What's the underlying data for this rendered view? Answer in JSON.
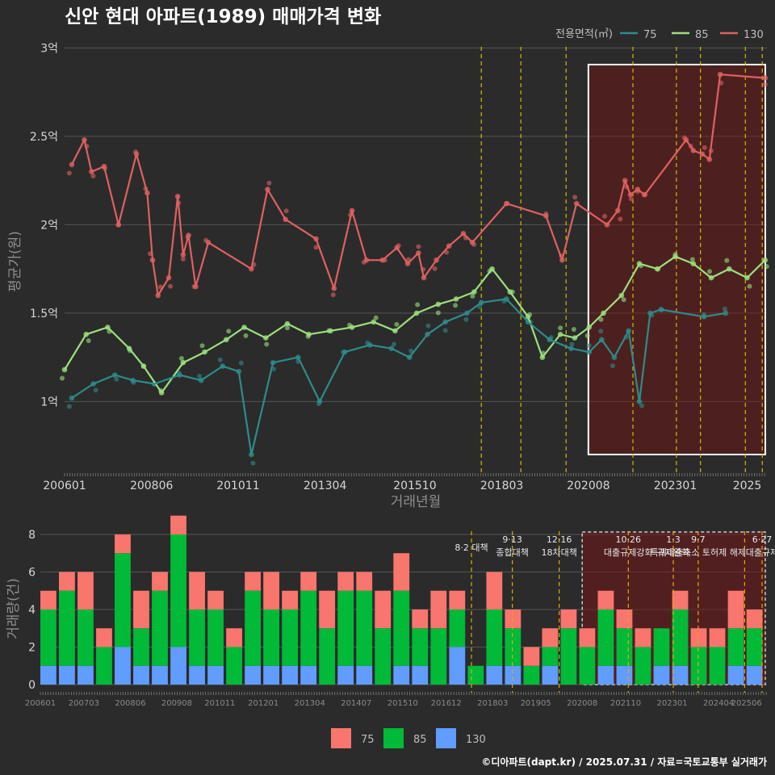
{
  "title": "신안 현대 아파트(1989) 매매가격 변화",
  "credit": "©디아파트(dapt.kr) / 2025.07.31 / 자료=국토교통부 실거래가",
  "colors": {
    "bg": "#2b2b2b",
    "s75": "#2e8b8b",
    "s85": "#9be07e",
    "s130": "#e06060",
    "b75": "#f8766d",
    "b85": "#00ba38",
    "b130": "#619cff",
    "policy": "#d4b800",
    "highlight": "#ffffff"
  },
  "chart_data": [
    {
      "type": "line",
      "title": "신안 현대 아파트(1989) 매매가격 변화",
      "xlabel": "거래년월",
      "ylabel": "평균가(원)",
      "x_range": [
        2006.0,
        2025.55
      ],
      "ylim": [
        0.6,
        3.02
      ],
      "y_ticks": [
        {
          "v": 1.0,
          "label": "1억"
        },
        {
          "v": 1.5,
          "label": "1.5억"
        },
        {
          "v": 2.0,
          "label": "2억"
        },
        {
          "v": 2.5,
          "label": "2.5억"
        },
        {
          "v": 3.0,
          "label": "3억"
        }
      ],
      "x_ticks": [
        {
          "v": 2006.0,
          "label": "200601"
        },
        {
          "v": 2008.42,
          "label": "200806"
        },
        {
          "v": 2010.83,
          "label": "201011"
        },
        {
          "v": 2013.25,
          "label": "201304"
        },
        {
          "v": 2015.75,
          "label": "201510"
        },
        {
          "v": 2018.17,
          "label": "201803"
        },
        {
          "v": 2020.58,
          "label": "202008"
        },
        {
          "v": 2023.0,
          "label": "202301"
        },
        {
          "v": 2025.0,
          "label": "2025"
        }
      ],
      "legend": {
        "title": "전용면적(㎡)",
        "entries": [
          "75",
          "85",
          "130"
        ],
        "position": "top-right"
      },
      "series": [
        {
          "name": "130",
          "x": [
            2006.2,
            2006.55,
            2006.75,
            2007.1,
            2007.5,
            2008.0,
            2008.3,
            2008.45,
            2008.6,
            2008.9,
            2009.15,
            2009.3,
            2009.45,
            2009.65,
            2010.0,
            2011.2,
            2011.65,
            2012.15,
            2013.0,
            2013.5,
            2014.0,
            2014.4,
            2014.85,
            2015.25,
            2015.55,
            2015.85,
            2016.0,
            2016.35,
            2016.7,
            2017.1,
            2017.35,
            2018.3,
            2019.4,
            2019.85,
            2020.25,
            2021.1,
            2021.4,
            2021.6,
            2021.75,
            2021.95,
            2022.15,
            2023.3,
            2023.5,
            2023.75,
            2023.95,
            2024.25,
            2025.5
          ],
          "y": [
            2.34,
            2.48,
            2.3,
            2.33,
            2.0,
            2.4,
            2.18,
            1.8,
            1.6,
            1.7,
            2.16,
            1.83,
            1.94,
            1.65,
            1.9,
            1.75,
            2.2,
            2.03,
            1.92,
            1.64,
            2.08,
            1.8,
            1.8,
            1.87,
            1.78,
            1.84,
            1.7,
            1.8,
            1.88,
            1.95,
            1.9,
            2.12,
            2.05,
            1.8,
            2.12,
            2.0,
            2.08,
            2.25,
            2.17,
            2.2,
            2.17,
            2.48,
            2.42,
            2.4,
            2.37,
            2.85,
            2.83
          ]
        },
        {
          "name": "85",
          "x": [
            2006.0,
            2006.6,
            2007.2,
            2007.8,
            2008.2,
            2008.7,
            2009.3,
            2009.9,
            2010.5,
            2011.0,
            2011.6,
            2012.2,
            2012.8,
            2013.4,
            2014.0,
            2014.6,
            2015.2,
            2015.8,
            2016.4,
            2016.9,
            2017.4,
            2017.9,
            2018.4,
            2018.9,
            2019.3,
            2019.8,
            2020.2,
            2020.6,
            2021.0,
            2021.5,
            2022.0,
            2022.5,
            2023.0,
            2023.5,
            2024.0,
            2024.5,
            2025.0,
            2025.5
          ],
          "y": [
            1.18,
            1.38,
            1.42,
            1.3,
            1.2,
            1.05,
            1.22,
            1.28,
            1.35,
            1.42,
            1.36,
            1.44,
            1.38,
            1.4,
            1.42,
            1.45,
            1.4,
            1.5,
            1.55,
            1.58,
            1.62,
            1.75,
            1.62,
            1.48,
            1.25,
            1.38,
            1.36,
            1.42,
            1.5,
            1.6,
            1.78,
            1.75,
            1.82,
            1.78,
            1.7,
            1.75,
            1.7,
            1.8
          ]
        },
        {
          "name": "75",
          "x": [
            2006.2,
            2006.8,
            2007.4,
            2007.9,
            2008.5,
            2009.2,
            2009.8,
            2010.4,
            2010.85,
            2011.2,
            2011.8,
            2012.5,
            2013.1,
            2013.8,
            2014.5,
            2015.1,
            2015.6,
            2016.1,
            2016.6,
            2017.2,
            2017.6,
            2018.3,
            2018.9,
            2019.5,
            2020.1,
            2020.6,
            2020.95,
            2021.3,
            2021.7,
            2022.0,
            2022.3,
            2022.6,
            2023.8,
            2024.4
          ],
          "y": [
            1.02,
            1.1,
            1.15,
            1.12,
            1.1,
            1.15,
            1.12,
            1.2,
            1.17,
            0.7,
            1.22,
            1.25,
            1.0,
            1.28,
            1.32,
            1.3,
            1.25,
            1.38,
            1.45,
            1.5,
            1.56,
            1.58,
            1.45,
            1.35,
            1.3,
            1.28,
            1.35,
            1.25,
            1.4,
            1.0,
            1.5,
            1.52,
            1.48,
            1.5
          ]
        }
      ],
      "policy_lines": [
        2017.6,
        2018.7,
        2019.96,
        2021.82,
        2023.03,
        2023.7,
        2024.95,
        2025.42
      ],
      "highlight": [
        2020.58,
        2025.55
      ]
    },
    {
      "type": "bar",
      "ylabel": "거래량(건)",
      "x_range": [
        2006.0,
        2025.55
      ],
      "ylim": [
        0,
        8.3
      ],
      "y_ticks": [
        0,
        2,
        4,
        6,
        8
      ],
      "x_ticks": [
        {
          "v": 2006.0,
          "label": "200601"
        },
        {
          "v": 2007.17,
          "label": "200703"
        },
        {
          "v": 2008.42,
          "label": "200806"
        },
        {
          "v": 2009.67,
          "label": "200908"
        },
        {
          "v": 2010.83,
          "label": "201011"
        },
        {
          "v": 2012.0,
          "label": "201201"
        },
        {
          "v": 2013.25,
          "label": "201304"
        },
        {
          "v": 2014.5,
          "label": "201407"
        },
        {
          "v": 2015.75,
          "label": "201510"
        },
        {
          "v": 2016.92,
          "label": "201612"
        },
        {
          "v": 2018.17,
          "label": "201803"
        },
        {
          "v": 2019.33,
          "label": "201905"
        },
        {
          "v": 2020.58,
          "label": "202008"
        },
        {
          "v": 2021.75,
          "label": "202110"
        },
        {
          "v": 2023.0,
          "label": "202301"
        },
        {
          "v": 2024.25,
          "label": "202404"
        },
        {
          "v": 2025.0,
          "label": "202506"
        }
      ],
      "legend": {
        "entries": [
          "75",
          "85",
          "130"
        ],
        "position": "bottom"
      },
      "series": [
        {
          "name": "130",
          "x": [
            2006.0,
            2006.5,
            2007.0,
            2007.5,
            2008.0,
            2008.5,
            2009.0,
            2009.5,
            2010.0,
            2010.5,
            2011.0,
            2011.5,
            2012.0,
            2012.5,
            2013.0,
            2013.5,
            2014.0,
            2014.5,
            2015.0,
            2015.5,
            2016.0,
            2016.5,
            2017.0,
            2017.5,
            2018.0,
            2018.5,
            2019.0,
            2019.5,
            2020.0,
            2020.5,
            2021.0,
            2021.5,
            2022.0,
            2022.5,
            2023.0,
            2023.5,
            2024.0,
            2024.5,
            2025.0
          ],
          "values": [
            1,
            1,
            1,
            0,
            2,
            1,
            1,
            2,
            1,
            1,
            0,
            1,
            1,
            1,
            1,
            0,
            1,
            1,
            0,
            1,
            1,
            0,
            2,
            0,
            1,
            1,
            0,
            1,
            0,
            0,
            1,
            1,
            0,
            1,
            1,
            0,
            0,
            1,
            1
          ]
        },
        {
          "name": "85",
          "x": [
            2006.0,
            2006.5,
            2007.0,
            2007.5,
            2008.0,
            2008.5,
            2009.0,
            2009.5,
            2010.0,
            2010.5,
            2011.0,
            2011.5,
            2012.0,
            2012.5,
            2013.0,
            2013.5,
            2014.0,
            2014.5,
            2015.0,
            2015.5,
            2016.0,
            2016.5,
            2017.0,
            2017.5,
            2018.0,
            2018.5,
            2019.0,
            2019.5,
            2020.0,
            2020.5,
            2021.0,
            2021.5,
            2022.0,
            2022.5,
            2023.0,
            2023.5,
            2024.0,
            2024.5,
            2025.0
          ],
          "values": [
            3,
            4,
            3,
            2,
            5,
            2,
            4,
            6,
            3,
            3,
            2,
            4,
            3,
            3,
            4,
            3,
            4,
            4,
            3,
            4,
            2,
            3,
            2,
            1,
            3,
            2,
            1,
            1,
            3,
            2,
            3,
            2,
            2,
            2,
            3,
            2,
            2,
            2,
            2
          ]
        },
        {
          "name": "75",
          "x": [
            2006.0,
            2006.5,
            2007.0,
            2007.5,
            2008.0,
            2008.5,
            2009.0,
            2009.5,
            2010.0,
            2010.5,
            2011.0,
            2011.5,
            2012.0,
            2012.5,
            2013.0,
            2013.5,
            2014.0,
            2014.5,
            2015.0,
            2015.5,
            2016.0,
            2016.5,
            2017.0,
            2017.5,
            2018.0,
            2018.5,
            2019.0,
            2019.5,
            2020.0,
            2020.5,
            2021.0,
            2021.5,
            2022.0,
            2022.5,
            2023.0,
            2023.5,
            2024.0,
            2024.5,
            2025.0
          ],
          "values": [
            1,
            1,
            2,
            1,
            1,
            2,
            1,
            1,
            2,
            1,
            1,
            1,
            2,
            1,
            1,
            2,
            1,
            1,
            2,
            2,
            1,
            2,
            1,
            0,
            2,
            1,
            1,
            1,
            1,
            1,
            1,
            1,
            1,
            0,
            1,
            1,
            1,
            2,
            1
          ]
        }
      ],
      "annotations": [
        {
          "x": 2017.6,
          "lines": [
            "8·2 대책"
          ]
        },
        {
          "x": 2018.7,
          "lines": [
            "9·13",
            "종합대책"
          ]
        },
        {
          "x": 2019.96,
          "lines": [
            "12·16",
            "18차대책"
          ]
        },
        {
          "x": 2021.82,
          "lines": [
            "10·26",
            "대출규제강화"
          ]
        },
        {
          "x": 2023.03,
          "lines": [
            "1·3",
            "규제완화"
          ]
        },
        {
          "x": 2023.7,
          "lines": [
            "9·7",
            "특례대출축소 토허제 해제"
          ]
        },
        {
          "x": 2025.42,
          "lines": [
            "6·27",
            "대출규제"
          ]
        }
      ],
      "policy_lines": [
        2017.6,
        2018.7,
        2019.96,
        2021.82,
        2023.03,
        2023.7,
        2024.95,
        2025.42
      ],
      "highlight": [
        2020.58,
        2025.55
      ]
    }
  ]
}
